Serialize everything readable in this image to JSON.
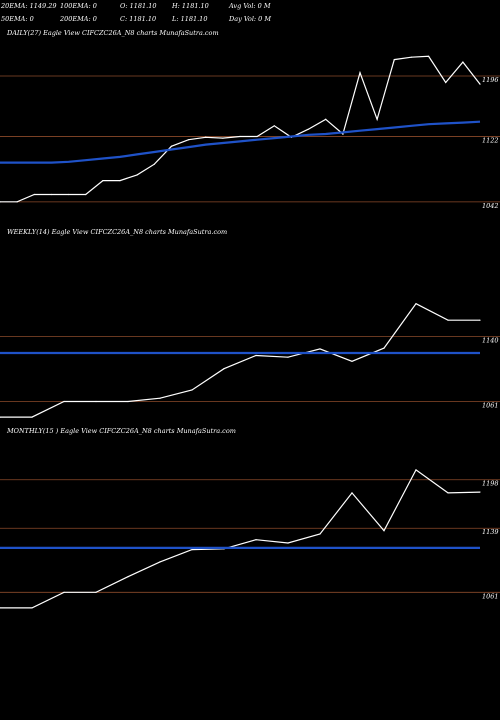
{
  "header": {
    "row1": [
      {
        "label": "20EMA:",
        "value": "1149.29"
      },
      {
        "label": "100EMA:",
        "value": "0"
      },
      {
        "label": "O:",
        "value": "1181.10"
      },
      {
        "label": "H:",
        "value": "1181.10"
      },
      {
        "label": "Avg Vol:",
        "value": "0  M"
      }
    ],
    "row2": [
      {
        "label": "50EMA:",
        "value": "0"
      },
      {
        "label": "200EMA:",
        "value": "0"
      },
      {
        "label": "C:",
        "value": "1181.10"
      },
      {
        "label": "L:",
        "value": "1181.10"
      },
      {
        "label": "Day Vol:",
        "value": "0  M"
      }
    ]
  },
  "colors": {
    "background": "#000000",
    "price_line": "#ffffff",
    "ema_line": "#1f52c8",
    "level_line": "#8b4a2a"
  },
  "chart_data": [
    {
      "type": "line",
      "title": "DAILY(27) Eagle  View  CIFCZC26A_N8 charts MunafaSutra.com",
      "ylim": [
        1010,
        1240
      ],
      "grid": false,
      "y_ticks": [
        1196,
        1122,
        1042
      ],
      "series": [
        {
          "name": "price",
          "values": [
            1042,
            1042,
            1051,
            1051,
            1051,
            1051,
            1068,
            1068,
            1075,
            1088,
            1110,
            1118,
            1121,
            1120,
            1122,
            1122,
            1135,
            1121,
            1131,
            1143,
            1125,
            1200,
            1143,
            1216,
            1219,
            1220,
            1188,
            1213,
            1186
          ]
        },
        {
          "name": "ema",
          "values": [
            1090,
            1090,
            1090,
            1090,
            1091,
            1093,
            1095,
            1097,
            1100,
            1103,
            1106,
            1109,
            1112,
            1114,
            1116,
            1118,
            1120,
            1122,
            1124,
            1125,
            1127,
            1129,
            1131,
            1133,
            1135,
            1137,
            1138,
            1139,
            1140
          ]
        }
      ]
    },
    {
      "type": "line",
      "title": "WEEKLY(14) Eagle  View  CIFCZC26A_N8 charts MunafaSutra.com",
      "ylim": [
        1030,
        1260
      ],
      "grid": false,
      "y_ticks": [
        1140,
        1061
      ],
      "series": [
        {
          "name": "price",
          "values": [
            1042,
            1042,
            1061,
            1061,
            1061,
            1065,
            1075,
            1101,
            1117,
            1115,
            1125,
            1110,
            1126,
            1180,
            1160,
            1160
          ]
        },
        {
          "name": "ema",
          "values": [
            1120,
            1120,
            1120,
            1120,
            1120,
            1120,
            1120,
            1120,
            1120,
            1120,
            1120,
            1120,
            1120,
            1120,
            1120,
            1120
          ]
        }
      ]
    },
    {
      "type": "line",
      "title": "MONTHLY(15           ) Eagle  View  CIFCZC26A_N8 charts MunafaSutra.com",
      "ylim": [
        1020,
        1250
      ],
      "grid": false,
      "y_ticks": [
        1198,
        1139,
        1061
      ],
      "series": [
        {
          "name": "price",
          "values": [
            1042,
            1042,
            1061,
            1061,
            1080,
            1098,
            1113,
            1114,
            1125,
            1121,
            1132,
            1182,
            1136,
            1210,
            1182,
            1183
          ]
        },
        {
          "name": "ema",
          "values": [
            1115,
            1115,
            1115,
            1115,
            1115,
            1115,
            1115,
            1115,
            1115,
            1115,
            1115,
            1115,
            1115,
            1115,
            1115,
            1115
          ]
        }
      ]
    }
  ]
}
